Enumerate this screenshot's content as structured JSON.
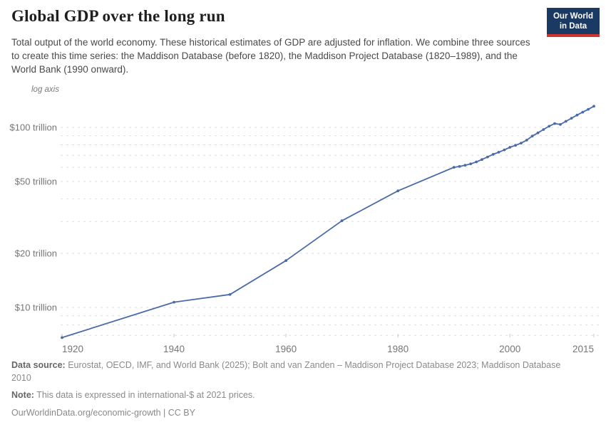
{
  "header": {
    "title": "Global GDP over the long run",
    "subtitle": "Total output of the world economy. These historical estimates of GDP are adjusted for inflation. We combine three sources to create this time series: the Maddison Database (before 1820), the Maddison Project Database (1820–1989), and the World Bank (1990 onward)."
  },
  "logo": {
    "line1": "Our World",
    "line2": "in Data",
    "bg_color": "#1a3a63",
    "accent_color": "#d0342f"
  },
  "chart_data": {
    "type": "line",
    "title": "Global GDP over the long run",
    "scale": "log",
    "log_axis_label": "log axis",
    "y_unit": "international-$ (trillions), 2021 prices",
    "x_domain": [
      1920,
      2015
    ],
    "x_ticks": [
      1920,
      1940,
      1960,
      1980,
      2000,
      2015
    ],
    "y_gridlines": [
      {
        "value": 7,
        "label": ""
      },
      {
        "value": 8,
        "label": ""
      },
      {
        "value": 9,
        "label": ""
      },
      {
        "value": 10,
        "label": "$10 trillion"
      },
      {
        "value": 20,
        "label": "$20 trillion"
      },
      {
        "value": 30,
        "label": ""
      },
      {
        "value": 40,
        "label": ""
      },
      {
        "value": 50,
        "label": "$50 trillion"
      },
      {
        "value": 60,
        "label": ""
      },
      {
        "value": 70,
        "label": ""
      },
      {
        "value": 80,
        "label": ""
      },
      {
        "value": 90,
        "label": ""
      },
      {
        "value": 100,
        "label": "$100 trillion"
      }
    ],
    "x": [
      1920,
      1940,
      1950,
      1960,
      1970,
      1980,
      1990,
      1991,
      1992,
      1993,
      1994,
      1995,
      1996,
      1997,
      1998,
      1999,
      2000,
      2001,
      2002,
      2003,
      2004,
      2005,
      2006,
      2007,
      2008,
      2009,
      2010,
      2011,
      2012,
      2013,
      2014,
      2015
    ],
    "series": [
      {
        "name": "World GDP (trillion international-$)",
        "color": "#4a6aa8",
        "values": [
          6.8,
          10.7,
          11.8,
          18.2,
          30.3,
          44.4,
          60.0,
          60.7,
          61.6,
          62.7,
          64.3,
          66.3,
          68.5,
          70.8,
          72.8,
          75.0,
          77.5,
          79.5,
          81.8,
          85.0,
          89.5,
          93.2,
          97.3,
          101.5,
          105.0,
          103.8,
          108.0,
          112.5,
          117.0,
          121.5,
          126.0,
          131.0
        ]
      }
    ],
    "grid_color": "#dedede",
    "tick_label_color": "#767676"
  },
  "footer": {
    "source_label": "Data source:",
    "source_text": " Eurostat, OECD, IMF, and World Bank (2025); Bolt and van Zanden – Maddison Project Database 2023; Maddison Database 2010",
    "note_label": "Note:",
    "note_text": " This data is expressed in international-$ at 2021 prices.",
    "url_line": "OurWorldinData.org/economic-growth | CC BY"
  }
}
